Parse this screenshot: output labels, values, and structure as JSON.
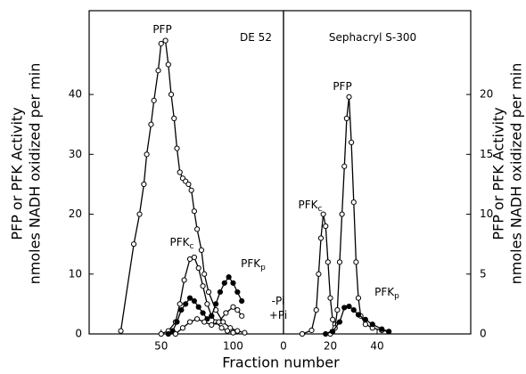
{
  "chart_data": [
    {
      "type": "line",
      "annotations": [
        {
          "text": "PFP"
        },
        {
          "text": "PFK",
          "sub": "c"
        },
        {
          "text": "PFK",
          "sub": "p"
        },
        {
          "text": "-Pi"
        },
        {
          "text": "+Pi"
        },
        {
          "text": "DE 52"
        }
      ],
      "xlim": [
        0,
        135
      ],
      "xticks": [
        50,
        100
      ],
      "ylim": [
        0,
        54
      ],
      "yticks": [
        0,
        10,
        20,
        30,
        40
      ],
      "series": [
        {
          "name": "PFP",
          "marker": "open",
          "color": "#000000",
          "x": [
            22,
            31,
            35,
            38,
            40,
            43,
            45,
            48,
            50,
            53,
            55,
            57,
            59,
            61,
            63,
            65,
            67,
            69,
            71,
            73,
            75,
            78,
            80,
            83,
            88,
            93,
            98,
            103,
            108
          ],
          "values": [
            0.5,
            15,
            20,
            25,
            30,
            35,
            39,
            44,
            48.5,
            49,
            45,
            40,
            36,
            31,
            27,
            26,
            25.5,
            25,
            24,
            20.5,
            17.5,
            14,
            10,
            7,
            4,
            2,
            1,
            0.5,
            0.2
          ]
        },
        {
          "name": "PFKc",
          "marker": "open",
          "color": "#000000",
          "x": [
            50,
            55,
            60,
            63,
            66,
            70,
            73,
            76,
            79,
            82,
            85,
            88,
            92,
            96,
            100
          ],
          "values": [
            0,
            0.5,
            2,
            5,
            9,
            12.5,
            12.8,
            11,
            8,
            5,
            3,
            2,
            1,
            0.5,
            0.2
          ]
        },
        {
          "name": "-Pi",
          "marker": "filled",
          "color": "#000000",
          "x": [
            55,
            58,
            61,
            64,
            67,
            70,
            73,
            76,
            79,
            82,
            85,
            88,
            91,
            94,
            97,
            100,
            103,
            106
          ],
          "values": [
            0,
            0.5,
            2,
            4,
            5,
            6,
            5.5,
            4.5,
            3.5,
            2.5,
            3,
            5,
            7,
            8.5,
            9.5,
            8.5,
            7,
            5.5
          ]
        },
        {
          "name": "+Pi",
          "marker": "open",
          "color": "#000000",
          "x": [
            60,
            65,
            70,
            75,
            80,
            85,
            90,
            95,
            100,
            103,
            106
          ],
          "values": [
            0,
            1,
            2,
            2.5,
            2,
            1.5,
            2,
            3.5,
            4.5,
            4,
            3
          ]
        }
      ]
    },
    {
      "type": "line",
      "annotations": [
        {
          "text": "Sephacryl S-300"
        },
        {
          "text": "PFP"
        },
        {
          "text": "PFK",
          "sub": "c"
        },
        {
          "text": "PFK",
          "sub": "p"
        }
      ],
      "xlim": [
        0,
        80
      ],
      "xticks": [
        0,
        20,
        40
      ],
      "ylim": [
        0,
        27
      ],
      "yticks": [
        0,
        5,
        10,
        15,
        20
      ],
      "series": [
        {
          "name": "PFKc",
          "marker": "open",
          "color": "#000000",
          "x": [
            8,
            12,
            14,
            15,
            16,
            17,
            18,
            19,
            20,
            21,
            22
          ],
          "values": [
            0,
            0.3,
            2,
            5,
            8,
            10,
            9,
            6,
            3,
            1.2,
            0.8
          ]
        },
        {
          "name": "PFP",
          "marker": "open",
          "color": "#000000",
          "x": [
            20,
            22,
            23,
            24,
            25,
            26,
            27,
            28,
            29,
            30,
            31,
            32,
            33,
            35,
            38,
            42,
            45
          ],
          "values": [
            0,
            0.5,
            2,
            6,
            10,
            14,
            18,
            19.8,
            16,
            11,
            6,
            3,
            1.5,
            0.8,
            0.5,
            0.3,
            0.2
          ]
        },
        {
          "name": "PFKp",
          "marker": "filled",
          "color": "#000000",
          "x": [
            18,
            21,
            24,
            26,
            28,
            30,
            32,
            35,
            38,
            42,
            45
          ],
          "values": [
            0,
            0.2,
            1,
            2.2,
            2.3,
            2,
            1.6,
            1.2,
            0.8,
            0.4,
            0.2
          ]
        }
      ]
    }
  ],
  "xlabel": "Fraction number",
  "ylabel": [
    "PFP or PFK Activity",
    "nmoles NADH oxidized per min"
  ]
}
